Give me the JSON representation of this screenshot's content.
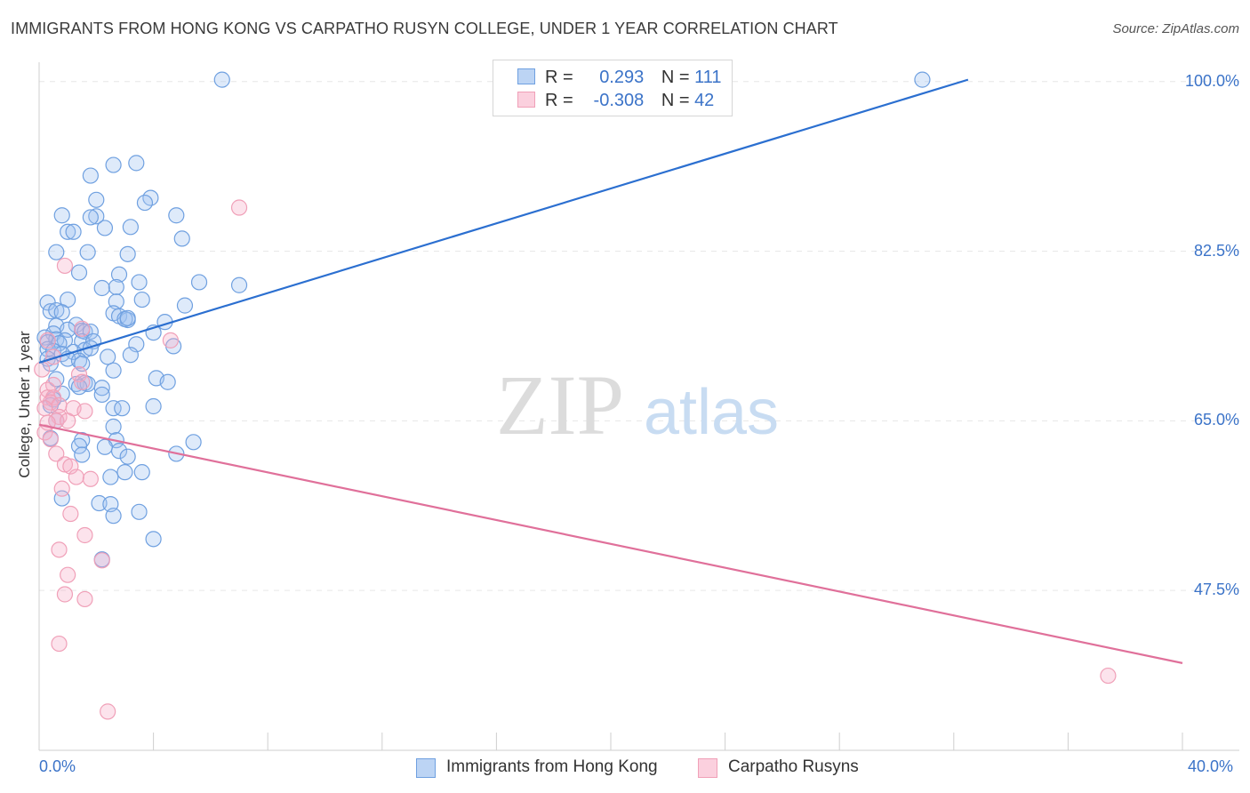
{
  "title": "IMMIGRANTS FROM HONG KONG VS CARPATHO RUSYN COLLEGE, UNDER 1 YEAR CORRELATION CHART",
  "source": "Source: ZipAtlas.com",
  "watermark": {
    "zip": "ZIP",
    "atlas": "atlas"
  },
  "stats": [
    {
      "r_label": "R =",
      "r_value": "0.293",
      "n_label": "N =",
      "n_value": "111",
      "color": "#6fa0e0"
    },
    {
      "r_label": "R =",
      "r_value": "-0.308",
      "n_label": "N =",
      "n_value": "42",
      "color": "#f0a0b8"
    }
  ],
  "legend": [
    {
      "label": "Immigrants from Hong Kong",
      "color": "#6fa0e0"
    },
    {
      "label": "Carpatho Rusyns",
      "color": "#f0a0b8"
    }
  ],
  "chart_data": {
    "type": "scatter",
    "xlabel": "",
    "ylabel": "College, Under 1 year",
    "xlim": [
      0,
      40
    ],
    "ylim": [
      31,
      102
    ],
    "x_tick_labels": {
      "min": "0.0%",
      "max": "40.0%"
    },
    "y_ticks": [
      {
        "value": 100,
        "label": "100.0%"
      },
      {
        "value": 82.5,
        "label": "82.5%"
      },
      {
        "value": 65,
        "label": "65.0%"
      },
      {
        "value": 47.5,
        "label": "47.5%"
      }
    ],
    "grid": true,
    "series": [
      {
        "name": "Immigrants from Hong Kong",
        "color": "#6fa0e0",
        "line_color": "#2b6fd0",
        "trend": {
          "x": [
            0.0,
            32.5
          ],
          "y": [
            71.0,
            100.2
          ]
        },
        "points": [
          [
            6.4,
            100.2
          ],
          [
            30.9,
            100.2
          ],
          [
            3.4,
            91.6
          ],
          [
            2.6,
            91.4
          ],
          [
            1.8,
            90.3
          ],
          [
            2.0,
            87.8
          ],
          [
            3.9,
            88.0
          ],
          [
            3.7,
            87.5
          ],
          [
            0.8,
            86.2
          ],
          [
            2.0,
            86.1
          ],
          [
            1.8,
            86.0
          ],
          [
            4.8,
            86.2
          ],
          [
            3.2,
            85.0
          ],
          [
            2.3,
            84.9
          ],
          [
            1.0,
            84.5
          ],
          [
            1.2,
            84.5
          ],
          [
            5.0,
            83.8
          ],
          [
            0.6,
            82.4
          ],
          [
            1.7,
            82.4
          ],
          [
            3.1,
            82.2
          ],
          [
            1.4,
            80.3
          ],
          [
            2.8,
            80.1
          ],
          [
            3.5,
            79.3
          ],
          [
            5.6,
            79.3
          ],
          [
            7.0,
            79.0
          ],
          [
            2.7,
            78.8
          ],
          [
            2.2,
            78.7
          ],
          [
            0.3,
            77.2
          ],
          [
            1.0,
            77.5
          ],
          [
            2.7,
            77.3
          ],
          [
            3.6,
            77.5
          ],
          [
            5.1,
            76.9
          ],
          [
            0.4,
            76.3
          ],
          [
            0.6,
            76.4
          ],
          [
            0.8,
            76.2
          ],
          [
            2.6,
            76.1
          ],
          [
            2.8,
            75.8
          ],
          [
            3.1,
            75.4
          ],
          [
            3.0,
            75.5
          ],
          [
            3.1,
            75.6
          ],
          [
            4.4,
            75.2
          ],
          [
            0.6,
            74.8
          ],
          [
            1.3,
            74.9
          ],
          [
            1.5,
            74.3
          ],
          [
            1.0,
            74.4
          ],
          [
            1.6,
            74.2
          ],
          [
            1.8,
            74.2
          ],
          [
            0.5,
            74.0
          ],
          [
            4.0,
            74.1
          ],
          [
            0.2,
            73.6
          ],
          [
            0.6,
            73.4
          ],
          [
            0.9,
            73.3
          ],
          [
            0.3,
            73.1
          ],
          [
            0.7,
            73.0
          ],
          [
            1.5,
            73.2
          ],
          [
            1.9,
            73.2
          ],
          [
            3.4,
            72.9
          ],
          [
            4.7,
            72.7
          ],
          [
            0.3,
            72.4
          ],
          [
            0.5,
            72.2
          ],
          [
            1.2,
            72.1
          ],
          [
            1.6,
            72.3
          ],
          [
            1.8,
            72.5
          ],
          [
            0.8,
            71.9
          ],
          [
            2.4,
            71.6
          ],
          [
            3.2,
            71.8
          ],
          [
            0.3,
            71.4
          ],
          [
            1.0,
            71.4
          ],
          [
            1.4,
            71.2
          ],
          [
            1.5,
            70.9
          ],
          [
            2.6,
            70.2
          ],
          [
            0.4,
            70.9
          ],
          [
            4.1,
            69.4
          ],
          [
            4.5,
            69.0
          ],
          [
            0.6,
            69.3
          ],
          [
            1.3,
            68.8
          ],
          [
            1.6,
            68.9
          ],
          [
            1.7,
            68.8
          ],
          [
            1.4,
            68.5
          ],
          [
            2.2,
            68.4
          ],
          [
            0.8,
            67.8
          ],
          [
            2.2,
            67.7
          ],
          [
            0.5,
            67.2
          ],
          [
            0.4,
            66.6
          ],
          [
            2.6,
            66.3
          ],
          [
            2.9,
            66.3
          ],
          [
            4.0,
            66.5
          ],
          [
            0.6,
            65.0
          ],
          [
            2.6,
            64.4
          ],
          [
            0.4,
            63.2
          ],
          [
            1.5,
            63.0
          ],
          [
            2.7,
            63.0
          ],
          [
            5.4,
            62.8
          ],
          [
            1.4,
            62.4
          ],
          [
            2.3,
            62.3
          ],
          [
            2.8,
            61.9
          ],
          [
            1.5,
            61.5
          ],
          [
            3.1,
            61.3
          ],
          [
            4.8,
            61.6
          ],
          [
            3.0,
            59.7
          ],
          [
            3.6,
            59.7
          ],
          [
            2.5,
            59.2
          ],
          [
            0.8,
            57.0
          ],
          [
            2.1,
            56.5
          ],
          [
            2.5,
            56.4
          ],
          [
            2.6,
            55.2
          ],
          [
            3.5,
            55.6
          ],
          [
            4.0,
            52.8
          ],
          [
            2.2,
            50.7
          ]
        ]
      },
      {
        "name": "Carpatho Rusyns",
        "color": "#f0a0b8",
        "line_color": "#e0709a",
        "trend": {
          "x": [
            0.0,
            40.0
          ],
          "y": [
            64.6,
            40.0
          ]
        },
        "points": [
          [
            7.0,
            87.0
          ],
          [
            0.9,
            81.0
          ],
          [
            1.5,
            74.5
          ],
          [
            0.3,
            73.3
          ],
          [
            4.6,
            73.3
          ],
          [
            0.5,
            71.6
          ],
          [
            0.1,
            70.3
          ],
          [
            1.4,
            69.8
          ],
          [
            1.5,
            69.0
          ],
          [
            0.5,
            68.7
          ],
          [
            0.3,
            68.2
          ],
          [
            0.3,
            67.4
          ],
          [
            0.5,
            67.4
          ],
          [
            0.4,
            66.9
          ],
          [
            0.7,
            66.6
          ],
          [
            0.2,
            66.3
          ],
          [
            1.2,
            66.3
          ],
          [
            1.6,
            66.0
          ],
          [
            0.7,
            65.4
          ],
          [
            0.6,
            65.0
          ],
          [
            1.0,
            65.0
          ],
          [
            0.3,
            64.8
          ],
          [
            0.2,
            63.8
          ],
          [
            0.4,
            63.1
          ],
          [
            0.6,
            61.6
          ],
          [
            0.9,
            60.5
          ],
          [
            1.1,
            60.3
          ],
          [
            1.3,
            59.2
          ],
          [
            1.8,
            59.0
          ],
          [
            0.8,
            58.0
          ],
          [
            1.1,
            55.4
          ],
          [
            1.6,
            53.2
          ],
          [
            0.7,
            51.7
          ],
          [
            2.2,
            50.6
          ],
          [
            1.0,
            49.1
          ],
          [
            0.9,
            47.1
          ],
          [
            1.6,
            46.6
          ],
          [
            0.7,
            42.0
          ],
          [
            37.4,
            38.7
          ],
          [
            2.4,
            35.0
          ]
        ]
      }
    ]
  }
}
